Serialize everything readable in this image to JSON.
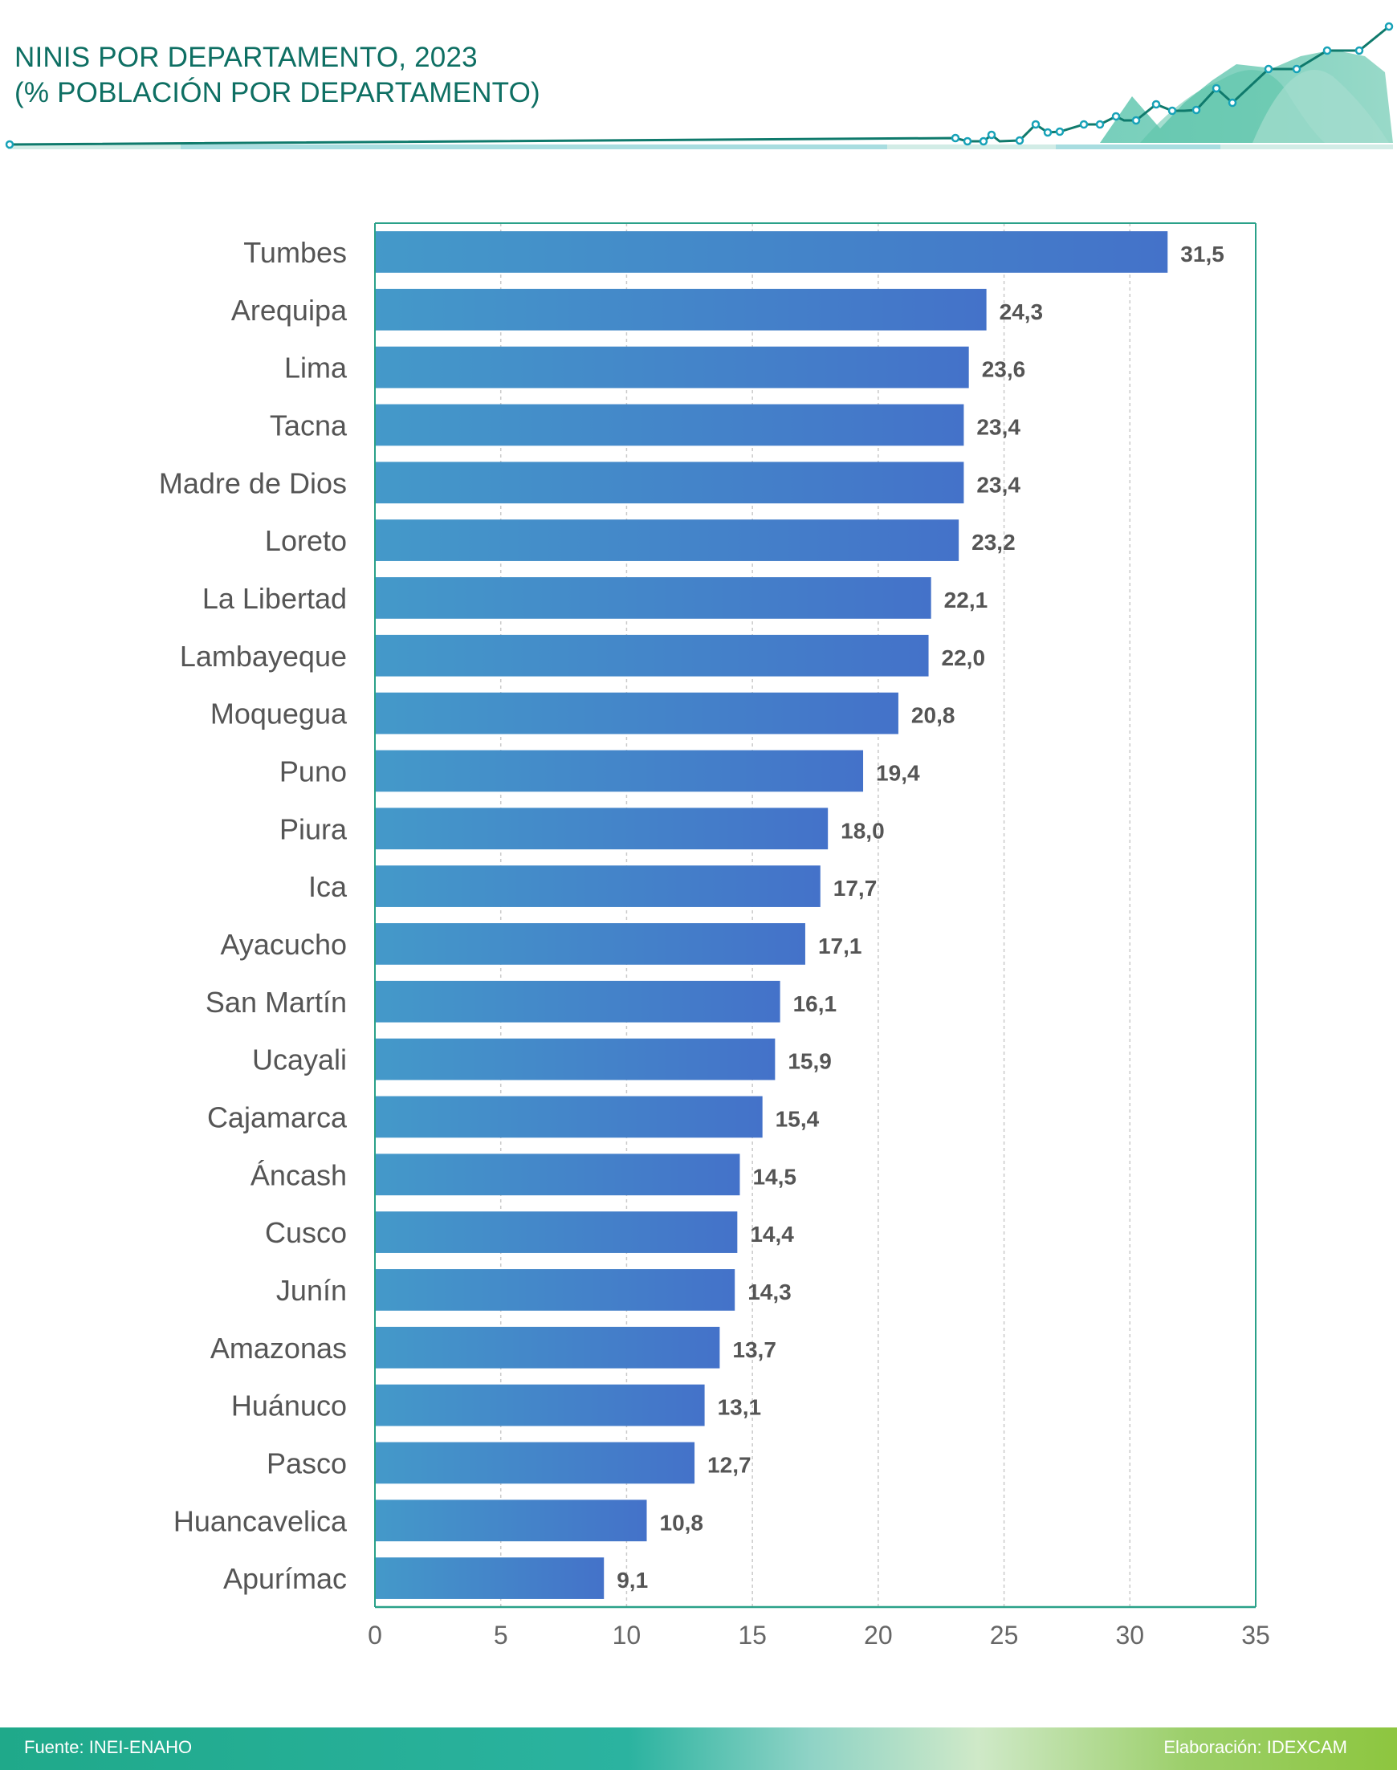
{
  "header": {
    "title_line1": "NINIS POR DEPARTAMENTO, 2023",
    "title_line2": "(% POBLACIÓN POR DEPARTAMENTO)"
  },
  "colors": {
    "accent": "#0e6f63",
    "bar_start": "#4499c9",
    "bar_end": "#4472c9",
    "axis": "#2aa189",
    "label": "#555555"
  },
  "chart_data": {
    "type": "bar",
    "orientation": "horizontal",
    "title": "NINIS POR DEPARTAMENTO, 2023 (% POBLACIÓN POR DEPARTAMENTO)",
    "xlabel": "",
    "ylabel": "",
    "xlim": [
      0,
      35
    ],
    "ticks": [
      0,
      5,
      10,
      15,
      20,
      25,
      30,
      35
    ],
    "grid": "vertical dashed",
    "categories": [
      "Tumbes",
      "Arequipa",
      "Lima",
      "Tacna",
      "Madre de Dios",
      "Loreto",
      "La Libertad",
      "Lambayeque",
      "Moquegua",
      "Puno",
      "Piura",
      "Ica",
      "Ayacucho",
      "San Martín",
      "Ucayali",
      "Cajamarca",
      "Áncash",
      "Cusco",
      "Junín",
      "Amazonas",
      "Huánuco",
      "Pasco",
      "Huancavelica",
      "Apurímac"
    ],
    "values": [
      31.5,
      24.3,
      23.6,
      23.4,
      23.4,
      23.2,
      22.1,
      22.0,
      20.8,
      19.4,
      18.0,
      17.7,
      17.1,
      16.1,
      15.9,
      15.4,
      14.5,
      14.4,
      14.3,
      13.7,
      13.1,
      12.7,
      10.8,
      9.1
    ],
    "value_labels": [
      "31,5",
      "24,3",
      "23,6",
      "23,4",
      "23,4",
      "23,2",
      "22,1",
      "22,0",
      "20,8",
      "19,4",
      "18,0",
      "17,7",
      "17,1",
      "16,1",
      "15,9",
      "15,4",
      "14,5",
      "14,4",
      "14,3",
      "13,7",
      "13,1",
      "12,7",
      "10,8",
      "9,1"
    ]
  },
  "footer": {
    "source": "Fuente: INEI-ENAHO",
    "credit": "Elaboración:  IDEXCAM"
  }
}
